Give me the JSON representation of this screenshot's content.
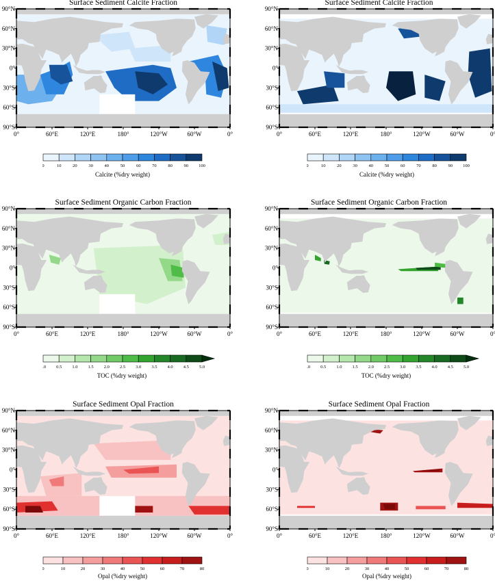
{
  "panels": [
    {
      "id": "calcite-left",
      "title": "Surface Sediment Calcite Fraction",
      "field": "calcite",
      "style": "obs"
    },
    {
      "id": "calcite-right",
      "title": "Surface Sediment Calcite Fraction",
      "field": "calcite",
      "style": "model"
    },
    {
      "id": "toc-left",
      "title": "Surface Sediment Organic Carbon Fraction",
      "field": "toc",
      "style": "obs"
    },
    {
      "id": "toc-right",
      "title": "Surface Sediment Organic Carbon Fraction",
      "field": "toc",
      "style": "model"
    },
    {
      "id": "opal-left",
      "title": "Surface Sediment Opal Fraction",
      "field": "opal",
      "style": "obs"
    },
    {
      "id": "opal-right",
      "title": "Surface Sediment Opal Fraction",
      "field": "opal",
      "style": "model"
    }
  ],
  "axes": {
    "lat_labels": [
      "90°N",
      "60°N",
      "30°N",
      "0°",
      "30°S",
      "60°S",
      "90°S"
    ],
    "lon_labels": [
      "0°",
      "60°E",
      "120°E",
      "180°",
      "120°W",
      "60°W",
      "0°"
    ]
  },
  "colorbars": [
    {
      "id": "calcite",
      "label": "Calcite (%dry weight)",
      "ticks": [
        "0",
        "10",
        "20",
        "30",
        "40",
        "50",
        "60",
        "70",
        "80",
        "90",
        "100"
      ],
      "colors": [
        "#eaf4fd",
        "#cfe6fa",
        "#b0d5f6",
        "#8fc3f2",
        "#6cb0ee",
        "#4f9de9",
        "#2f86df",
        "#1f6cc4",
        "#17539b",
        "#0e3a6e",
        "#07213f"
      ],
      "arrow": false
    },
    {
      "id": "toc",
      "label": "TOC (%dry weight)",
      "ticks": [
        "0.0",
        "0.5",
        "1.0",
        "1.5",
        "2.0",
        "2.5",
        "3.0",
        "3.5",
        "4.0",
        "4.5",
        "5.0"
      ],
      "colors": [
        "#ecf8ea",
        "#d3f0cd",
        "#b5e6ac",
        "#93d989",
        "#70cb66",
        "#4fbc48",
        "#33a52f",
        "#23872a",
        "#186922",
        "#0e4b18",
        "#06300d"
      ],
      "arrow": true
    },
    {
      "id": "opal",
      "label": "Opal (%dry weight)",
      "ticks": [
        "0",
        "10",
        "20",
        "30",
        "40",
        "50",
        "60",
        "70",
        "80"
      ],
      "colors": [
        "#fde2e2",
        "#f9c2c2",
        "#f59e9e",
        "#f07a7a",
        "#ea5454",
        "#e03030",
        "#c81d1d",
        "#a01212",
        "#7a0909"
      ],
      "arrow": false
    }
  ]
}
